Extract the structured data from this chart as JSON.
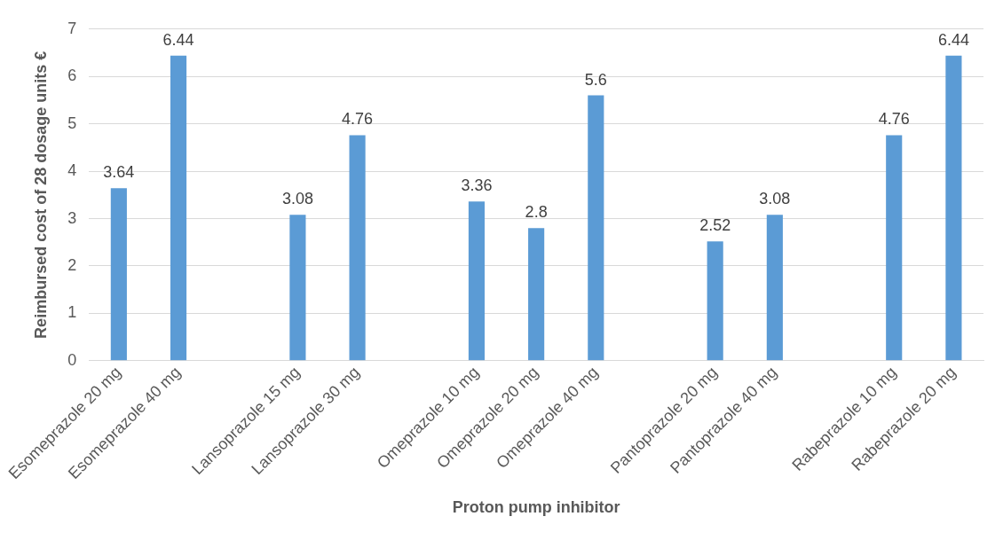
{
  "chart_data": {
    "type": "bar",
    "xlabel": "Proton pump inhibitor",
    "ylabel": "Reimbursed cost of 28 dosage units €",
    "categories": [
      "Esomeprazole 20 mg",
      "Esomeprazole 40 mg",
      null,
      "Lansoprazole 15 mg",
      "Lansoprazole 30 mg",
      null,
      "Omeprazole 10 mg",
      "Omeprazole 20 mg",
      "Omeprazole 40 mg",
      null,
      "Pantoprazole 20 mg",
      "Pantoprazole 40 mg",
      null,
      "Rabeprazole 10 mg",
      "Rabeprazole 20 mg"
    ],
    "values": [
      3.64,
      6.44,
      null,
      3.08,
      4.76,
      null,
      3.36,
      2.8,
      5.6,
      null,
      2.52,
      3.08,
      null,
      4.76,
      6.44
    ],
    "color": "#5b9bd5",
    "ylim": [
      0,
      7
    ],
    "yticks": [
      0,
      1,
      2,
      3,
      4,
      5,
      6,
      7
    ],
    "grid": "y",
    "data_labels": true
  }
}
